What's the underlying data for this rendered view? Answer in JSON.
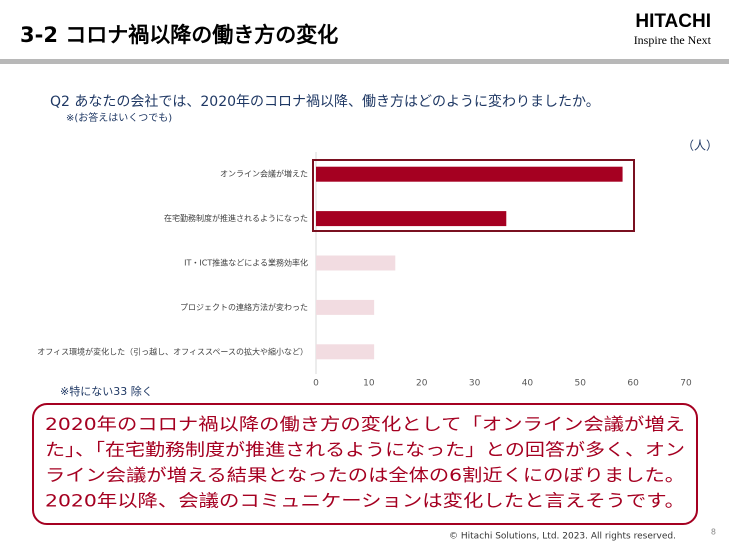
{
  "header": {
    "title": "3-2  コロナ禍以降の働き方の変化",
    "logo": "HITACHI",
    "tagline": "Inspire the Next"
  },
  "question": "Q2  あなたの会社では、2020年のコロナ禍以降、働き方はどのように変わりましたか。",
  "question_note": "※(お答えはいくつでも)",
  "chart_data": {
    "type": "hbar",
    "unit_label": "（人）",
    "categories": [
      "オンライン会議が増えた",
      "在宅勤務制度が推進されるようになった",
      "IT・ICT推進などによる業務効率化",
      "プロジェクトの連絡方法が変わった",
      "オフィス環境が変化した（引っ越し、オフィススペースの拡大や縮小など）"
    ],
    "values": [
      58,
      36,
      15,
      11,
      11
    ],
    "colors": [
      "#a50021",
      "#a50021",
      "#f2dce1",
      "#f2dce1",
      "#f2dce1"
    ],
    "xlim": [
      0,
      70
    ],
    "xticks": [
      0,
      10,
      20,
      30,
      40,
      50,
      60,
      70
    ],
    "note": "※特にない33  除く"
  },
  "summary": {
    "lines": [
      "2020年のコロナ禍以降の働き方の変化として「オンライン会議が増え",
      "た」、「在宅勤務制度が推進されるようになった」との回答が多く、オン",
      "ライン会議が増える結果となったのは全体の6割近くにのぼりました。",
      "2020年以降、会議のコミュニケーションは変化したと言えそうです。"
    ]
  },
  "footer": {
    "copyright": "© Hitachi Solutions, Ltd. 2023. All rights reserved.",
    "page": "8"
  }
}
